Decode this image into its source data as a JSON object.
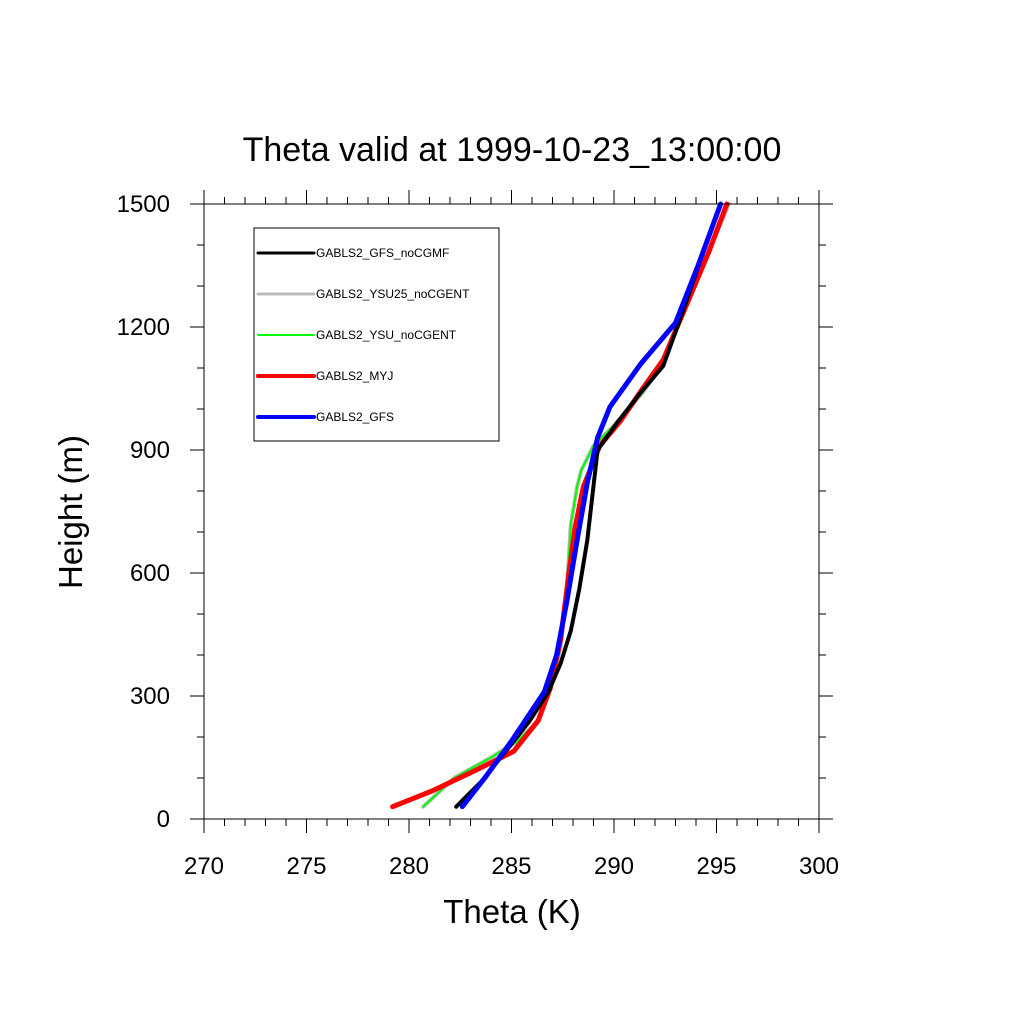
{
  "chart_data": {
    "type": "line",
    "title": "Theta valid at 1999-10-23_13:00:00",
    "xlabel": "Theta (K)",
    "ylabel": "Height (m)",
    "xlim": [
      270,
      300
    ],
    "ylim": [
      0,
      1500
    ],
    "xticks": [
      "270",
      "275",
      "280",
      "285",
      "290",
      "295",
      "300"
    ],
    "yticks": [
      "0",
      "300",
      "600",
      "900",
      "1200",
      "1500"
    ],
    "legend_position": "top-left",
    "grid": false,
    "series": [
      {
        "name": "GABLS2_GFS_noCGMF",
        "color": "#000000",
        "x": [
          282.3,
          283.5,
          284.8,
          285.9,
          286.8,
          287.4,
          287.9,
          288.3,
          288.7,
          289.2,
          290.2,
          291.3,
          292.4,
          293.3,
          294.2,
          295.2
        ],
        "y": [
          30,
          90,
          170,
          240,
          310,
          380,
          460,
          560,
          680,
          900,
          970,
          1040,
          1105,
          1230,
          1360,
          1500
        ]
      },
      {
        "name": "GABLS2_YSU25_noCGENT",
        "color": "#bbbbbb",
        "x": [
          280.7,
          282.2,
          284.0,
          285.3,
          286.3,
          286.9,
          287.4,
          287.7,
          287.9,
          288.2,
          288.4,
          289.0,
          290.2,
          291.4,
          292.4,
          293.5,
          294.6,
          295.6
        ],
        "y": [
          30,
          100,
          150,
          190,
          240,
          320,
          420,
          560,
          720,
          810,
          850,
          910,
          970,
          1040,
          1110,
          1250,
          1380,
          1500
        ]
      },
      {
        "name": "GABLS2_YSU_noCGENT",
        "color": "#00ff00",
        "x": [
          280.7,
          282.2,
          284.0,
          285.3,
          286.3,
          286.9,
          287.4,
          287.7,
          287.9,
          288.2,
          288.4,
          289.0,
          290.2,
          291.4,
          292.4,
          293.5,
          294.6,
          295.6
        ],
        "y": [
          30,
          100,
          150,
          190,
          240,
          320,
          420,
          560,
          720,
          810,
          850,
          910,
          970,
          1040,
          1110,
          1250,
          1380,
          1500
        ]
      },
      {
        "name": "GABLS2_MYJ",
        "color": "#ff0000",
        "x": [
          279.2,
          281.2,
          283.3,
          285.1,
          286.3,
          286.9,
          287.4,
          287.8,
          288.1,
          288.5,
          289.3,
          290.3,
          291.4,
          292.4,
          293.5,
          294.6,
          295.5
        ],
        "y": [
          30,
          70,
          120,
          165,
          240,
          320,
          440,
          600,
          710,
          810,
          910,
          970,
          1050,
          1120,
          1250,
          1380,
          1500
        ]
      },
      {
        "name": "GABLS2_GFS",
        "color": "#0000ff",
        "x": [
          282.6,
          283.7,
          285.0,
          286.6,
          287.2,
          287.7,
          288.2,
          288.7,
          289.2,
          289.8,
          291.3,
          293.0,
          294.1,
          295.2
        ],
        "y": [
          30,
          100,
          190,
          310,
          400,
          530,
          680,
          820,
          930,
          1005,
          1110,
          1210,
          1350,
          1500
        ]
      }
    ]
  }
}
